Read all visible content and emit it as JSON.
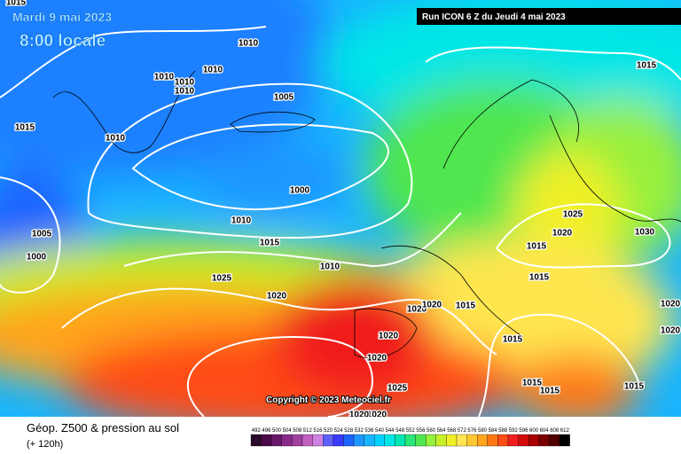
{
  "header": {
    "date": "Mardi 9 mai 2023",
    "time": "8:00 locale",
    "run": "Run ICON 6 Z du Jeudi 4 mai 2023"
  },
  "copyright": "Copyright © 2023 Meteociel.fr",
  "footer": {
    "title": "Géop. Z500 & pression au sol",
    "subtitle": "(+ 120h)"
  },
  "isobar_labels": [
    1015,
    1010,
    1010,
    1010,
    1010,
    1010,
    1005,
    1015,
    1010,
    1000,
    1010,
    1015,
    1005,
    1000,
    1010,
    1025,
    1020,
    1020,
    1020,
    1015,
    1020,
    1020,
    1025,
    1015,
    1015,
    1015,
    1015,
    1015,
    1015,
    1020,
    1025,
    1030,
    1015,
    1020,
    1020,
    1020,
    1020
  ],
  "legend": {
    "values": [
      492,
      496,
      500,
      504,
      508,
      512,
      516,
      520,
      524,
      528,
      532,
      536,
      540,
      544,
      548,
      552,
      556,
      560,
      564,
      568,
      572,
      576,
      580,
      584,
      588,
      592,
      596,
      600,
      604,
      608,
      612
    ],
    "colors": [
      "#2a0a2a",
      "#4a0a4a",
      "#6a1a6a",
      "#8a2a8a",
      "#a040a0",
      "#c060c0",
      "#d080e0",
      "#6060ff",
      "#3a3aff",
      "#1e64ff",
      "#1e96ff",
      "#18b4ff",
      "#00d2ff",
      "#00e6e6",
      "#00e6b4",
      "#28e678",
      "#50e650",
      "#96f03c",
      "#c8f028",
      "#f0f028",
      "#ffe650",
      "#ffc832",
      "#ffa51e",
      "#ff7814",
      "#ff4b14",
      "#f01e1e",
      "#d20a0a",
      "#aa0000",
      "#780000",
      "#500000",
      "#000000"
    ]
  }
}
